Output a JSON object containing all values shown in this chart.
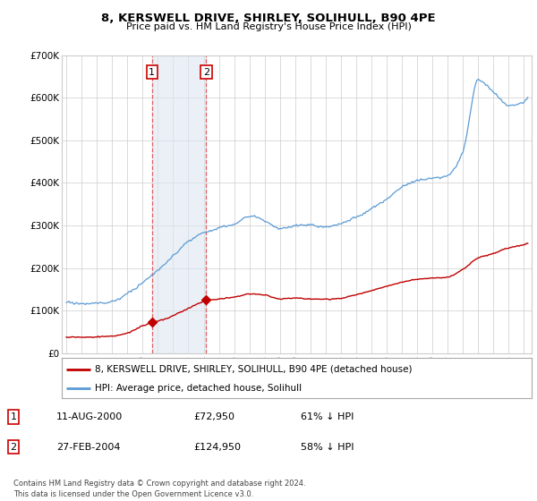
{
  "title": "8, KERSWELL DRIVE, SHIRLEY, SOLIHULL, B90 4PE",
  "subtitle": "Price paid vs. HM Land Registry's House Price Index (HPI)",
  "ylim": [
    0,
    700000
  ],
  "yticks": [
    0,
    100000,
    200000,
    300000,
    400000,
    500000,
    600000,
    700000
  ],
  "ytick_labels": [
    "£0",
    "£100K",
    "£200K",
    "£300K",
    "£400K",
    "£500K",
    "£600K",
    "£700K"
  ],
  "sale1_x": 2000.614,
  "sale1_price": 72950,
  "sale2_x": 2004.164,
  "sale2_price": 124950,
  "legend_line1": "8, KERSWELL DRIVE, SHIRLEY, SOLIHULL, B90 4PE (detached house)",
  "legend_line2": "HPI: Average price, detached house, Solihull",
  "table_row1": [
    "1",
    "11-AUG-2000",
    "£72,950",
    "61% ↓ HPI"
  ],
  "table_row2": [
    "2",
    "27-FEB-2004",
    "£124,950",
    "58% ↓ HPI"
  ],
  "footnote": "Contains HM Land Registry data © Crown copyright and database right 2024.\nThis data is licensed under the Open Government Licence v3.0.",
  "hpi_color": "#5b9bd5",
  "price_color": "#c00000",
  "shade_color": "#dce6f1",
  "vline_color": "#e06060",
  "box_color": "#cc0000",
  "grid_color": "#cccccc",
  "bg_color": "#ffffff"
}
